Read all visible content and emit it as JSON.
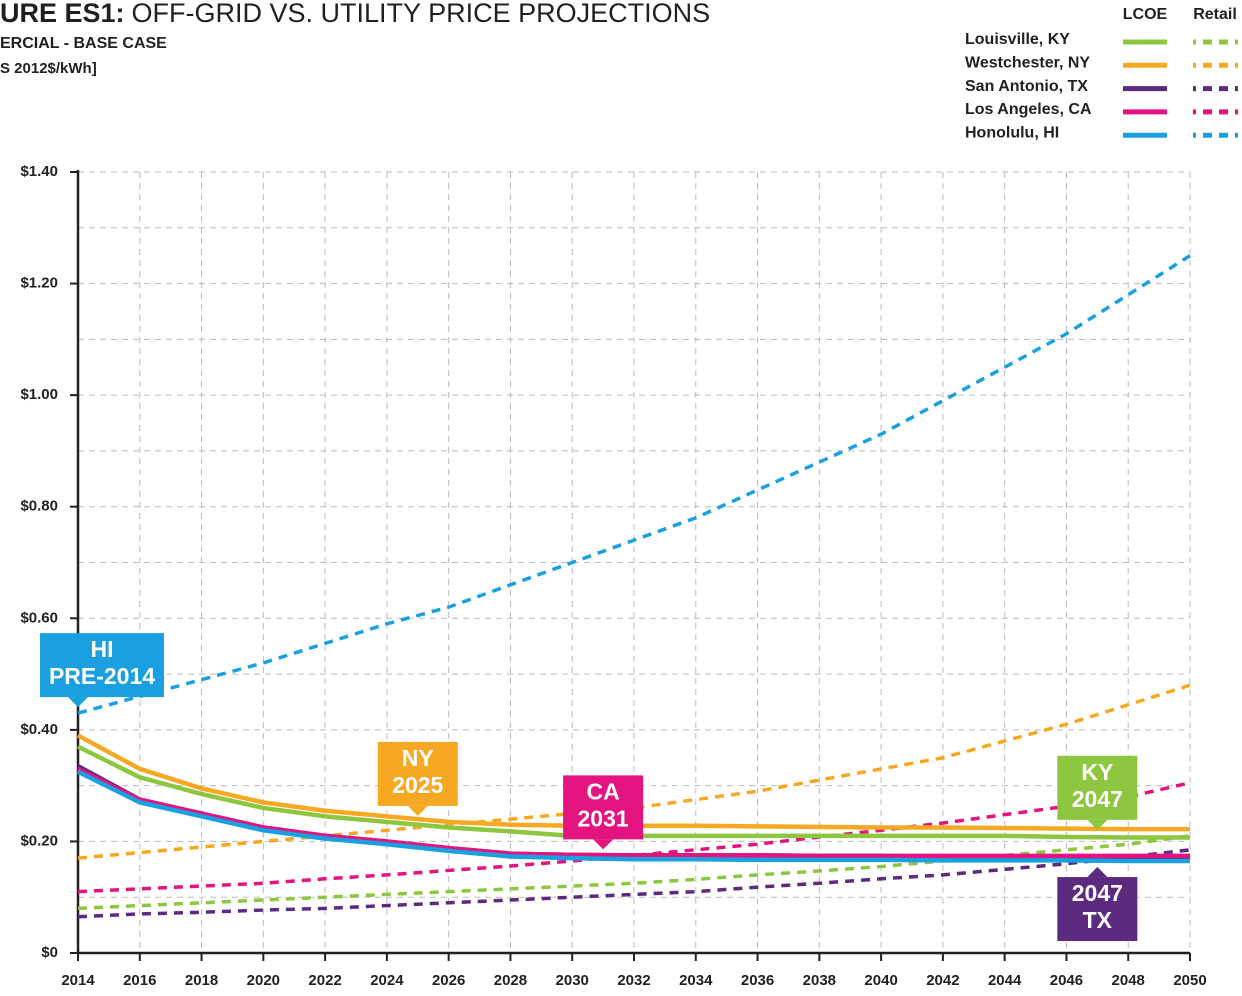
{
  "chart_data": {
    "type": "line",
    "title_bold": "URE ES1:",
    "title": "OFF-GRID VS. UTILITY PRICE PROJECTIONS",
    "subtitle": "ERCIAL - BASE CASE",
    "units": "S 2012$/kWh]",
    "legend_headers": [
      "LCOE",
      "Retail"
    ],
    "x": [
      2014,
      2016,
      2018,
      2020,
      2022,
      2024,
      2026,
      2028,
      2030,
      2032,
      2034,
      2036,
      2038,
      2040,
      2042,
      2044,
      2046,
      2048,
      2050
    ],
    "xlim": [
      2014,
      2050
    ],
    "xticks": [
      2014,
      2016,
      2018,
      2020,
      2022,
      2024,
      2026,
      2028,
      2030,
      2032,
      2034,
      2036,
      2038,
      2040,
      2042,
      2044,
      2046,
      2048,
      2050
    ],
    "ylim": [
      0,
      1.4
    ],
    "yticks": [
      {
        "value": 0,
        "label": "$0"
      },
      {
        "value": 0.2,
        "label": "$0.20"
      },
      {
        "value": 0.4,
        "label": "$0.40"
      },
      {
        "value": 0.6,
        "label": "$0.60"
      },
      {
        "value": 0.8,
        "label": "$0.80"
      },
      {
        "value": 1.0,
        "label": "$1.00"
      },
      {
        "value": 1.2,
        "label": "$1.20"
      },
      {
        "value": 1.4,
        "label": "$1.40"
      }
    ],
    "ygrid_minor": [
      0.1,
      0.3,
      0.5,
      0.7,
      0.9,
      1.1,
      1.3
    ],
    "grid": true,
    "series": [
      {
        "name": "Louisville, KY",
        "color": "#8dc63f",
        "lcoe": [
          0.37,
          0.315,
          0.285,
          0.26,
          0.245,
          0.235,
          0.225,
          0.218,
          0.21,
          0.21,
          0.21,
          0.21,
          0.21,
          0.21,
          0.21,
          0.21,
          0.208,
          0.207,
          0.207
        ],
        "retail": [
          0.08,
          0.085,
          0.09,
          0.095,
          0.1,
          0.105,
          0.11,
          0.115,
          0.12,
          0.125,
          0.132,
          0.14,
          0.147,
          0.155,
          0.165,
          0.175,
          0.185,
          0.195,
          0.21
        ]
      },
      {
        "name": "Westchester, NY",
        "color": "#f7a823",
        "lcoe": [
          0.39,
          0.33,
          0.295,
          0.27,
          0.255,
          0.245,
          0.235,
          0.23,
          0.228,
          0.228,
          0.228,
          0.227,
          0.226,
          0.225,
          0.225,
          0.224,
          0.223,
          0.222,
          0.222
        ],
        "retail": [
          0.17,
          0.18,
          0.19,
          0.2,
          0.21,
          0.22,
          0.23,
          0.24,
          0.25,
          0.26,
          0.275,
          0.29,
          0.31,
          0.33,
          0.35,
          0.38,
          0.41,
          0.445,
          0.48
        ]
      },
      {
        "name": "San Antonio, TX",
        "color": "#5c2a7f",
        "lcoe": [
          0.335,
          0.275,
          0.25,
          0.225,
          0.21,
          0.2,
          0.188,
          0.178,
          0.176,
          0.175,
          0.175,
          0.175,
          0.174,
          0.174,
          0.173,
          0.173,
          0.172,
          0.172,
          0.172
        ],
        "retail": [
          0.065,
          0.07,
          0.073,
          0.077,
          0.08,
          0.085,
          0.09,
          0.095,
          0.1,
          0.105,
          0.11,
          0.118,
          0.125,
          0.133,
          0.14,
          0.15,
          0.16,
          0.172,
          0.185
        ]
      },
      {
        "name": "Los Angeles, CA",
        "color": "#e3147f",
        "lcoe": [
          0.33,
          0.275,
          0.25,
          0.225,
          0.21,
          0.2,
          0.188,
          0.178,
          0.176,
          0.175,
          0.175,
          0.175,
          0.174,
          0.174,
          0.174,
          0.174,
          0.174,
          0.174,
          0.174
        ],
        "retail": [
          0.11,
          0.115,
          0.12,
          0.125,
          0.133,
          0.14,
          0.148,
          0.156,
          0.165,
          0.175,
          0.185,
          0.195,
          0.208,
          0.22,
          0.233,
          0.248,
          0.263,
          0.28,
          0.305
        ]
      },
      {
        "name": "Honolulu, HI",
        "color": "#1aa0e0",
        "lcoe": [
          0.325,
          0.27,
          0.245,
          0.22,
          0.205,
          0.195,
          0.183,
          0.173,
          0.17,
          0.168,
          0.168,
          0.167,
          0.167,
          0.167,
          0.166,
          0.166,
          0.166,
          0.165,
          0.165
        ],
        "retail": [
          0.43,
          0.46,
          0.49,
          0.52,
          0.555,
          0.59,
          0.62,
          0.66,
          0.7,
          0.74,
          0.78,
          0.83,
          0.88,
          0.93,
          0.99,
          1.05,
          1.11,
          1.18,
          1.25
        ]
      }
    ],
    "annotations": [
      {
        "lines": [
          "HI",
          "PRE-2014"
        ],
        "x": 2014,
        "y": 0.43,
        "color": "#1aa0e0",
        "position": "above"
      },
      {
        "lines": [
          "NY",
          "2025"
        ],
        "x": 2025,
        "y": 0.235,
        "color": "#f7a823",
        "position": "above"
      },
      {
        "lines": [
          "CA",
          "2031"
        ],
        "x": 2031,
        "y": 0.175,
        "color": "#e3147f",
        "position": "above"
      },
      {
        "lines": [
          "KY",
          "2047"
        ],
        "x": 2047,
        "y": 0.21,
        "color": "#8dc63f",
        "position": "above"
      },
      {
        "lines": [
          "2047",
          "TX"
        ],
        "x": 2047,
        "y": 0.172,
        "color": "#5c2a7f",
        "position": "below"
      }
    ]
  }
}
